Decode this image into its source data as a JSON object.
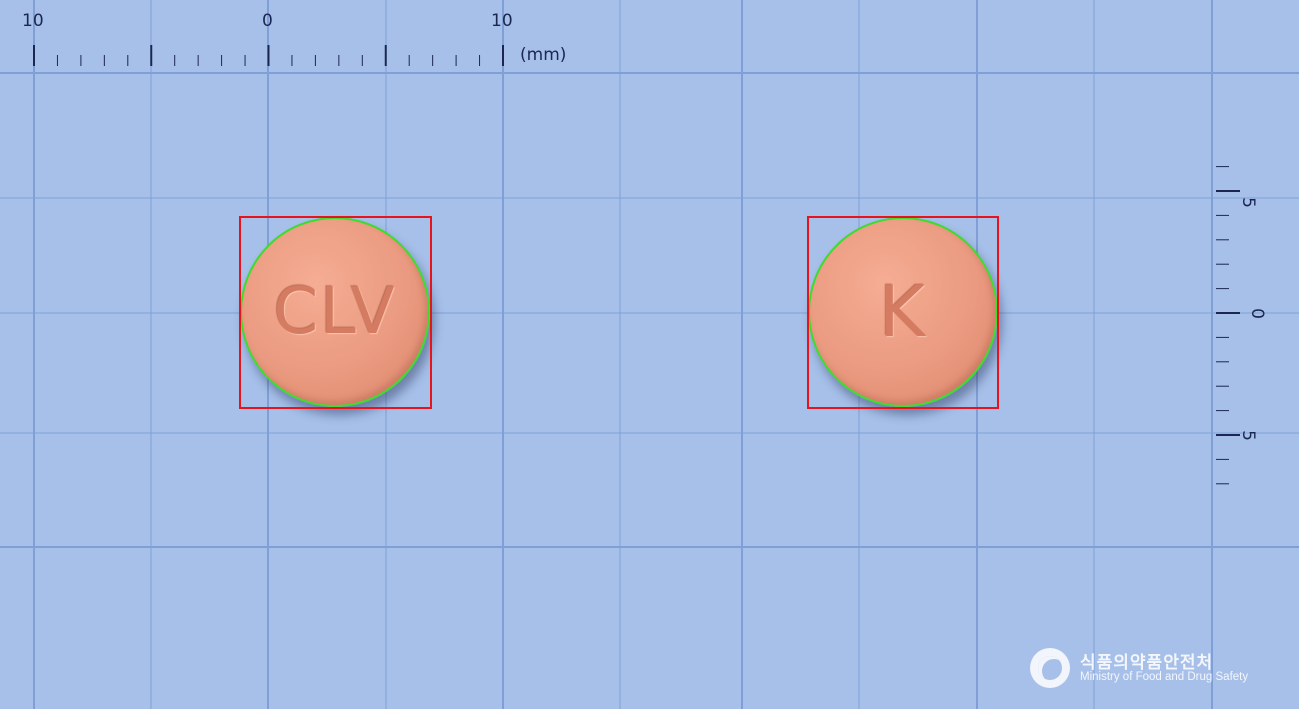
{
  "ruler_top": {
    "labels": [
      "10",
      "0",
      "10"
    ],
    "unit": "(mm)"
  },
  "ruler_right": {
    "labels": [
      "5",
      "0",
      "5"
    ]
  },
  "pills": [
    {
      "imprint": "CLV",
      "color": "#ec9d83"
    },
    {
      "imprint": "K",
      "color": "#ec9d83"
    }
  ],
  "colors": {
    "background": "#a6c0e9",
    "grid_line": "#7f9fd6",
    "outline": "#3ddc2e",
    "bbox": "#e8141b",
    "ruler_ink": "#1b2750"
  },
  "logo": {
    "icon": "mfds-logo-icon",
    "korean": "식품의약품안전처",
    "english": "Ministry of Food and Drug Safety"
  }
}
